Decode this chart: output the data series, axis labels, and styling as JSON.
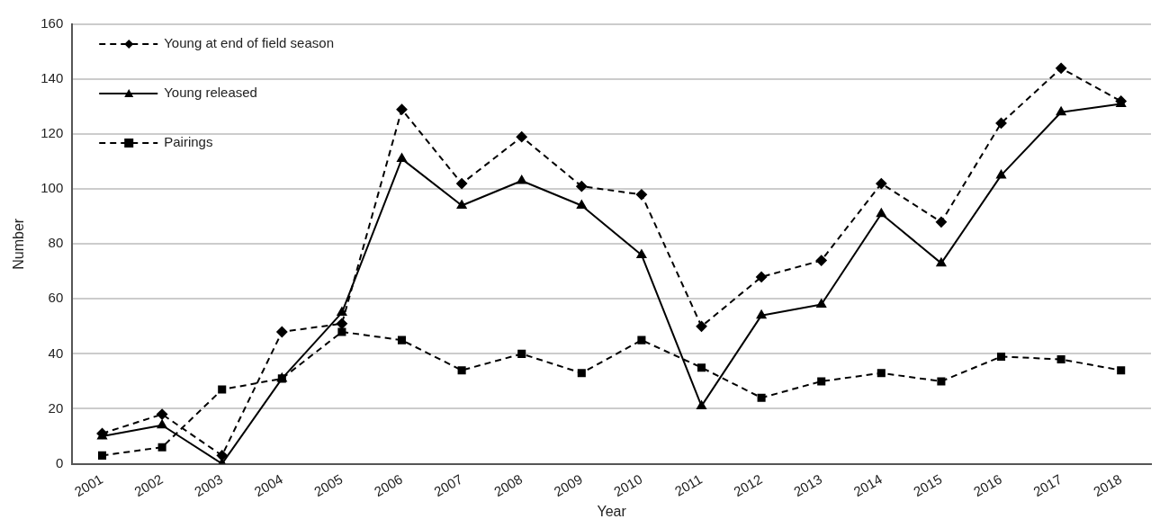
{
  "chart_data": {
    "type": "line",
    "xlabel": "Year",
    "ylabel": "Number",
    "categories": [
      "2001",
      "2002",
      "2003",
      "2004",
      "2005",
      "2006",
      "2007",
      "2008",
      "2009",
      "2010",
      "2011",
      "2012",
      "2013",
      "2014",
      "2015",
      "2016",
      "2017",
      "2018"
    ],
    "series": [
      {
        "name": "Young at end of field season",
        "color": "#000000",
        "marker": "diamond",
        "line_style": "dashed",
        "values": [
          11,
          18,
          3,
          48,
          51,
          129,
          102,
          119,
          101,
          98,
          50,
          68,
          74,
          102,
          88,
          124,
          144,
          132
        ]
      },
      {
        "name": "Young released",
        "color": "#000000",
        "marker": "triangle",
        "line_style": "solid",
        "values": [
          10,
          14,
          0,
          31,
          55,
          111,
          94,
          103,
          94,
          76,
          21,
          54,
          58,
          91,
          73,
          105,
          128,
          131
        ]
      },
      {
        "name": "Pairings",
        "color": "#000000",
        "marker": "square",
        "line_style": "dashed",
        "values": [
          3,
          6,
          27,
          31,
          48,
          45,
          34,
          40,
          33,
          45,
          35,
          24,
          30,
          33,
          30,
          39,
          38,
          34
        ]
      }
    ],
    "ylim": [
      0,
      160
    ],
    "yticks": [
      0,
      20,
      40,
      60,
      80,
      100,
      120,
      140,
      160
    ],
    "grid": "y",
    "legend": "top left"
  }
}
